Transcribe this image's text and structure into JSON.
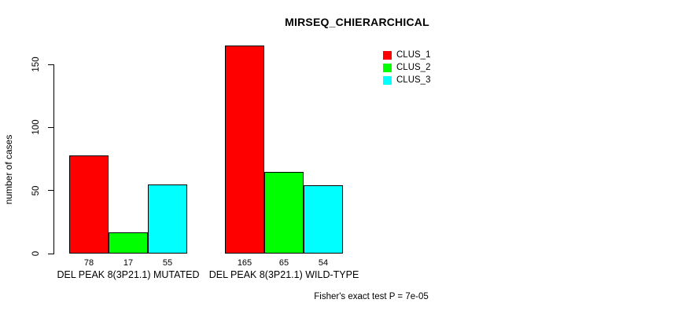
{
  "title": "MIRSEQ_CHIERARCHICAL",
  "footer": "Fisher's exact test P = 7e-05",
  "chart_data": {
    "type": "bar",
    "title": "MIRSEQ_CHIERARCHICAL",
    "xlabel": "",
    "ylabel": "number of cases",
    "categories": [
      "DEL PEAK  8(3P21.1) MUTATED",
      "DEL PEAK  8(3P21.1) WILD-TYPE"
    ],
    "series": [
      {
        "name": "CLUS_1",
        "color": "#ff0000",
        "values": [
          78,
          165
        ]
      },
      {
        "name": "CLUS_2",
        "color": "#00ff00",
        "values": [
          17,
          65
        ]
      },
      {
        "name": "CLUS_3",
        "color": "#00ffff",
        "values": [
          55,
          54
        ]
      }
    ],
    "bar_value_labels": [
      [
        78,
        17,
        55
      ],
      [
        165,
        65,
        54
      ]
    ],
    "show_bar_values": true,
    "yticks": [
      0,
      50,
      100,
      150
    ],
    "ylim": [
      0,
      165
    ],
    "grid": false,
    "legend_position": "top-right",
    "bar_border_color": "#000000",
    "annotation": "Fisher's exact test P = 7e-05"
  }
}
